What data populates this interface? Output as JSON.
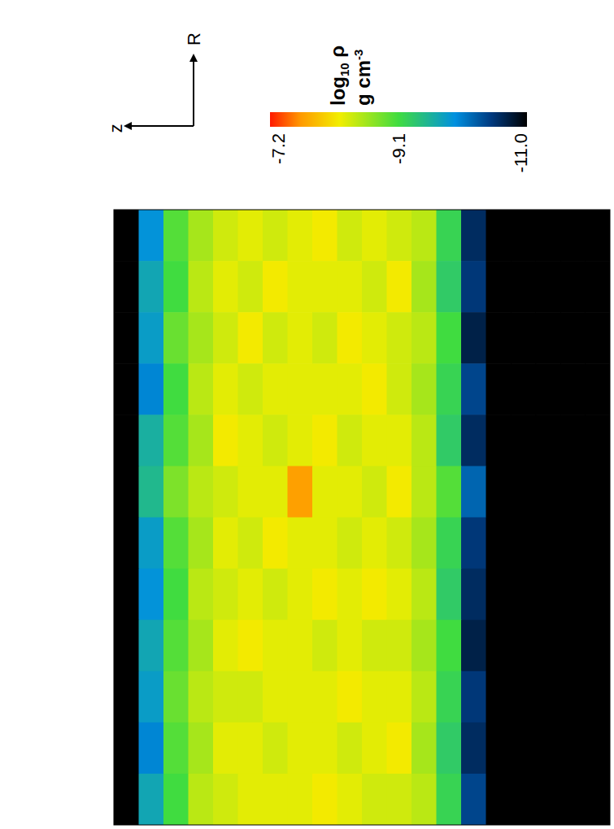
{
  "chart_data": {
    "type": "heatmap",
    "xlabel": "z",
    "ylabel": "R",
    "cells": [
      [
        -11.0,
        -9.9,
        -9.0,
        -8.6,
        -8.4,
        -8.3,
        -8.4,
        -8.3,
        -8.2,
        -8.4,
        -8.3,
        -8.4,
        -8.5,
        -9.2,
        -10.6,
        -11.0,
        -11.0,
        -11.0,
        -11.0,
        -11.0
      ],
      [
        -11.0,
        -9.7,
        -9.1,
        -8.5,
        -8.3,
        -8.4,
        -8.2,
        -8.3,
        -8.3,
        -8.3,
        -8.4,
        -8.2,
        -8.6,
        -9.3,
        -10.5,
        -11.0,
        -11.0,
        -11.0,
        -11.0,
        -11.0
      ],
      [
        -11.0,
        -9.8,
        -8.9,
        -8.6,
        -8.4,
        -8.2,
        -8.4,
        -8.3,
        -8.4,
        -8.2,
        -8.3,
        -8.4,
        -8.5,
        -9.1,
        -10.7,
        -11.0,
        -11.0,
        -11.0,
        -11.0,
        -11.0
      ],
      [
        -11.0,
        -10.0,
        -9.1,
        -8.5,
        -8.3,
        -8.4,
        -8.3,
        -8.3,
        -8.3,
        -8.3,
        -8.2,
        -8.4,
        -8.6,
        -9.2,
        -10.4,
        -11.0,
        -11.0,
        -11.0,
        -11.0,
        -11.0
      ],
      [
        -11.0,
        -9.6,
        -9.0,
        -8.6,
        -8.2,
        -8.3,
        -8.4,
        -8.3,
        -8.2,
        -8.4,
        -8.3,
        -8.3,
        -8.5,
        -9.3,
        -10.6,
        -11.0,
        -11.0,
        -11.0,
        -11.0,
        -11.0
      ],
      [
        -11.0,
        -9.5,
        -8.8,
        -8.5,
        -8.4,
        -8.3,
        -8.3,
        -7.7,
        -8.3,
        -8.3,
        -8.4,
        -8.2,
        -8.5,
        -9.0,
        -10.2,
        -11.0,
        -11.0,
        -11.0,
        -11.0,
        -11.0
      ],
      [
        -11.0,
        -9.8,
        -9.0,
        -8.6,
        -8.3,
        -8.4,
        -8.2,
        -8.3,
        -8.3,
        -8.4,
        -8.3,
        -8.4,
        -8.6,
        -9.2,
        -10.5,
        -11.0,
        -11.0,
        -11.0,
        -11.0,
        -11.0
      ],
      [
        -11.0,
        -9.9,
        -9.1,
        -8.5,
        -8.4,
        -8.3,
        -8.4,
        -8.3,
        -8.2,
        -8.3,
        -8.2,
        -8.3,
        -8.5,
        -9.3,
        -10.6,
        -11.0,
        -11.0,
        -11.0,
        -11.0,
        -11.0
      ],
      [
        -11.0,
        -9.7,
        -9.0,
        -8.6,
        -8.3,
        -8.2,
        -8.3,
        -8.3,
        -8.4,
        -8.3,
        -8.4,
        -8.4,
        -8.6,
        -9.1,
        -10.7,
        -11.0,
        -11.0,
        -11.0,
        -11.0,
        -11.0
      ],
      [
        -11.0,
        -9.8,
        -8.9,
        -8.5,
        -8.4,
        -8.4,
        -8.3,
        -8.3,
        -8.3,
        -8.2,
        -8.3,
        -8.3,
        -8.5,
        -9.2,
        -10.5,
        -11.0,
        -11.0,
        -11.0,
        -11.0,
        -11.0
      ],
      [
        -11.0,
        -10.0,
        -9.0,
        -8.6,
        -8.3,
        -8.3,
        -8.4,
        -8.3,
        -8.3,
        -8.4,
        -8.3,
        -8.2,
        -8.6,
        -9.3,
        -10.6,
        -11.0,
        -11.0,
        -11.0,
        -11.0,
        -11.0
      ],
      [
        -11.0,
        -9.7,
        -9.1,
        -8.5,
        -8.4,
        -8.3,
        -8.3,
        -8.3,
        -8.2,
        -8.3,
        -8.4,
        -8.4,
        -8.5,
        -9.2,
        -10.4,
        -11.0,
        -11.0,
        -11.0,
        -11.0,
        -11.0
      ]
    ],
    "colorbar": {
      "label": "log10 ρ",
      "units": "g cm-3",
      "range": [
        -7.2,
        -11.0
      ],
      "ticks": [
        -7.2,
        -9.1,
        {
          "value": -11.0,
          "label": "-11.0"
        }
      ]
    }
  }
}
